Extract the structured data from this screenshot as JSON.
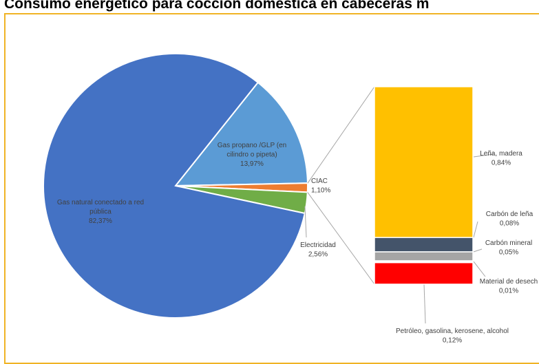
{
  "chart_data": {
    "type": "pie",
    "title": "Consumo energético para cocción doméstica en cabeceras m",
    "pie": {
      "slices": [
        {
          "label": "Gas natural conectado a red pública",
          "label_lines": [
            "Gas natural conectado a red",
            "pública"
          ],
          "value": 82.37,
          "value_label": "82,37%",
          "color": "#4472c4"
        },
        {
          "label": "Gas propano /GLP (en cilindro o pipeta)",
          "label_lines": [
            "Gas propano /GLP (en",
            "cilindro o pipeta)"
          ],
          "value": 13.97,
          "value_label": "13,97%",
          "color": "#5b9bd5"
        },
        {
          "label": "CIAC",
          "label_lines": [
            "CIAC"
          ],
          "value": 1.1,
          "value_label": "1,10%",
          "color": "#ed7d31"
        },
        {
          "label": "Electricidad",
          "label_lines": [
            "Electricidad"
          ],
          "value": 2.56,
          "value_label": "2,56%",
          "color": "#70ad47"
        }
      ]
    },
    "bar_of_pie": {
      "segments": [
        {
          "label": "Leña, madera",
          "value": 0.84,
          "value_label": "0,84%",
          "color": "#ffc000"
        },
        {
          "label": "Carbón de leña",
          "value": 0.08,
          "value_label": "0,08%",
          "color": "#44546a"
        },
        {
          "label": "Carbón mineral",
          "value": 0.05,
          "value_label": "0,05%",
          "color": "#a5a5a5"
        },
        {
          "label": "Material de desech",
          "value": 0.01,
          "value_label": "0,01%",
          "color": "#ffffff"
        },
        {
          "label": "Petróleo, gasolina, kerosene, alcohol",
          "value": 0.12,
          "value_label": "0,12%",
          "color": "#ff0000"
        }
      ]
    }
  }
}
